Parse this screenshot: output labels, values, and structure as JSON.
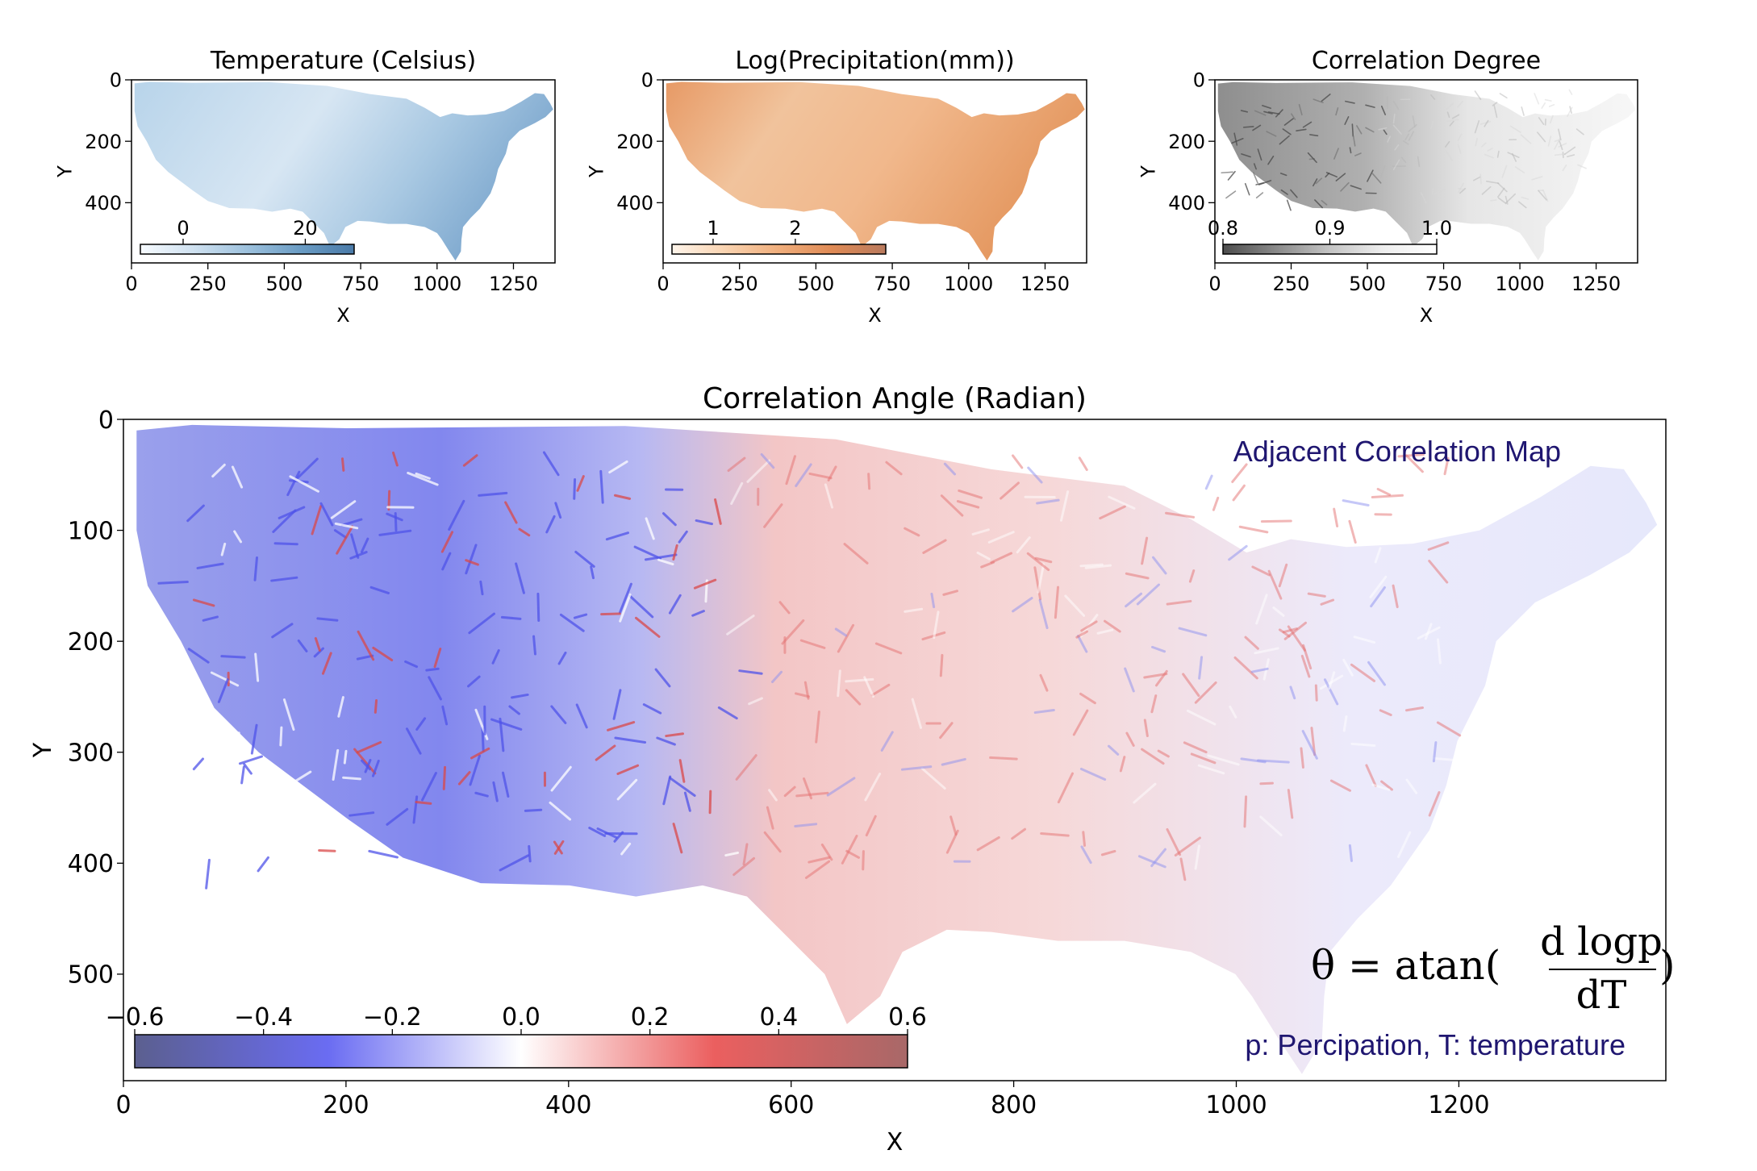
{
  "colors": {
    "temperature_cmap": [
      "#f7fbff",
      "#cfe1f0",
      "#9dc1dd",
      "#6a9cc4",
      "#4a7aa8"
    ],
    "precipitation_cmap": [
      "#fff5eb",
      "#f9d3b0",
      "#f0ae7c",
      "#df8a55",
      "#b97a5e"
    ],
    "degree_cmap": [
      "#4d4d4d",
      "#8a8a8a",
      "#c4c4c4",
      "#eeeeee",
      "#ffffff"
    ],
    "angle_cmap": [
      "#5b5f8f",
      "#6a6cf2",
      "#ffffff",
      "#eb5f5f",
      "#a86868"
    ],
    "annotation": "#1f1670"
  },
  "chart_data": [
    {
      "id": "temperature",
      "type": "heatmap",
      "title": "Temperature (Celsius)",
      "xlabel": "X",
      "ylabel": "Y",
      "xlim": [
        0,
        1386
      ],
      "ylim": [
        596,
        0
      ],
      "xticks": [
        0,
        250,
        500,
        750,
        1000,
        1250
      ],
      "yticks": [
        0,
        200,
        400
      ],
      "colorbar": {
        "range": [
          -7,
          28
        ],
        "ticks": [
          0,
          20
        ]
      }
    },
    {
      "id": "precipitation",
      "type": "heatmap",
      "title": "Log(Precipitation(mm))",
      "xlabel": "X",
      "ylabel": "Y",
      "xlim": [
        0,
        1386
      ],
      "ylim": [
        596,
        0
      ],
      "xticks": [
        0,
        250,
        500,
        750,
        1000,
        1250
      ],
      "yticks": [
        0,
        200,
        400
      ],
      "colorbar": {
        "range": [
          0.5,
          3.1
        ],
        "ticks": [
          1,
          2
        ]
      }
    },
    {
      "id": "degree",
      "type": "heatmap",
      "title": "Correlation Degree",
      "xlabel": "X",
      "ylabel": "Y",
      "xlim": [
        0,
        1386
      ],
      "ylim": [
        596,
        0
      ],
      "xticks": [
        0,
        250,
        500,
        750,
        1000,
        1250
      ],
      "yticks": [
        0,
        200,
        400
      ],
      "colorbar": {
        "range": [
          0.8,
          1.0
        ],
        "ticks": [
          "0.8",
          "0.9",
          "1.0"
        ]
      }
    },
    {
      "id": "angle",
      "type": "heatmap",
      "title": "Correlation Angle (Radian)",
      "xlabel": "X",
      "ylabel": "Y",
      "xlim": [
        0,
        1386
      ],
      "ylim": [
        596,
        0
      ],
      "xticks": [
        0,
        200,
        400,
        600,
        800,
        1000,
        1200
      ],
      "yticks": [
        0,
        100,
        200,
        300,
        400,
        500
      ],
      "colorbar": {
        "range": [
          -0.6,
          0.6
        ],
        "ticks": [
          "−0.6",
          "−0.4",
          "−0.2",
          "0.0",
          "0.2",
          "0.4",
          "0.6"
        ]
      },
      "annotations": {
        "map_label": "Adjacent Correlation Map",
        "legend": "p: Percipation, T: temperature",
        "equation": {
          "lhs": "θ = atan(",
          "numerator": "d logp",
          "denominator": "dT",
          "rhs": ")"
        }
      }
    }
  ]
}
